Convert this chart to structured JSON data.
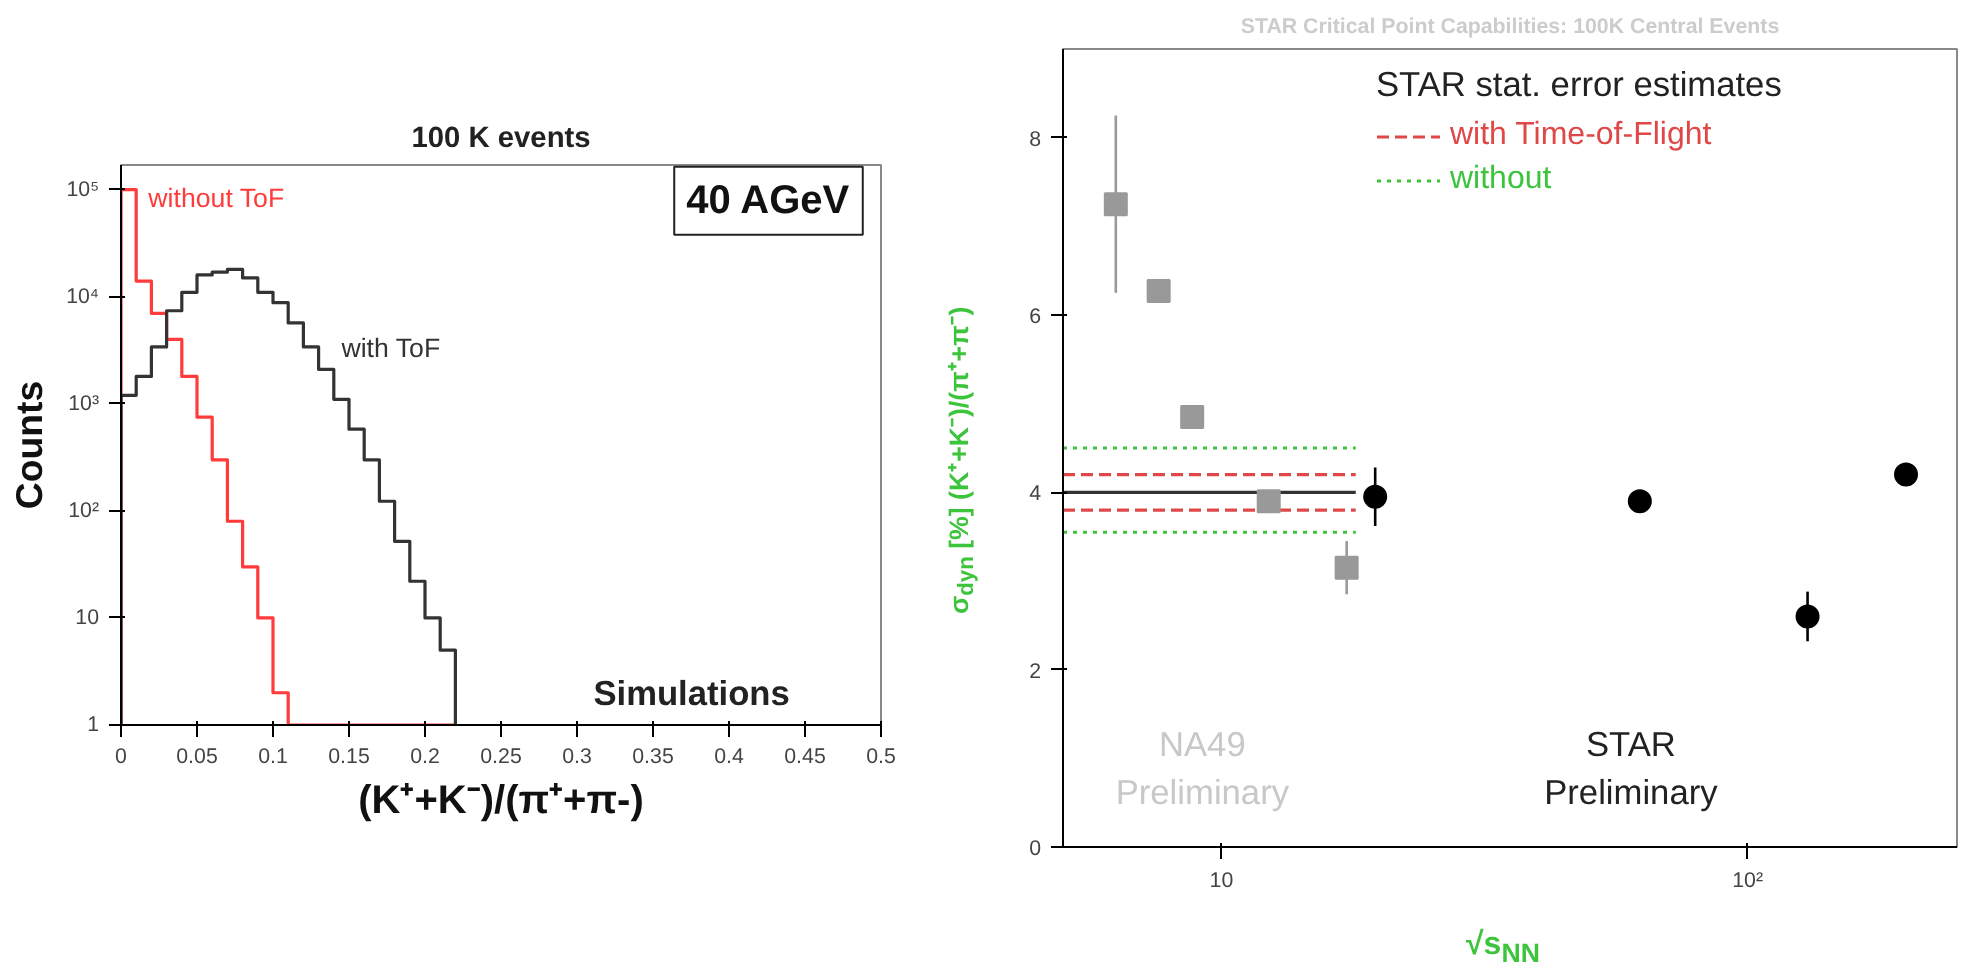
{
  "chart_data": [
    {
      "type": "histogram",
      "title": "100 K events",
      "xlabel": "(K⁺+K⁻)/(π⁺+π-)",
      "ylabel": "Counts",
      "log": "y",
      "xlim": [
        0,
        0.5
      ],
      "ylim": [
        1,
        170000
      ],
      "xticks": [
        0,
        0.05,
        0.1,
        0.15,
        0.2,
        0.25,
        0.3,
        0.35,
        0.4,
        0.45,
        0.5
      ],
      "yticks": [
        1,
        10,
        {
          "value": 100,
          "label": "10²"
        },
        {
          "value": 1000,
          "label": "10³"
        },
        {
          "value": 10000,
          "label": "10⁴"
        },
        {
          "value": 100000,
          "label": "10⁵"
        }
      ],
      "bins": [
        0,
        0.01,
        0.02,
        0.03,
        0.04,
        0.05,
        0.06,
        0.07,
        0.08,
        0.09,
        0.1,
        0.11,
        0.12,
        0.13,
        0.14,
        0.15,
        0.16,
        0.17,
        0.18,
        0.19,
        0.2,
        0.21,
        0.22
      ],
      "series": [
        {
          "name": "without ToF",
          "color": "#ff3b3b",
          "values": [
            100000,
            14000,
            7000,
            4000,
            1800,
            750,
            300,
            80,
            30,
            10,
            2,
            null,
            null,
            null,
            null,
            null,
            null,
            null,
            null,
            null,
            null,
            null
          ]
        },
        {
          "name": "with ToF",
          "color": "#333333",
          "values": [
            1200,
            1800,
            3400,
            7400,
            11000,
            16000,
            17000,
            18000,
            15000,
            11000,
            8800,
            5700,
            3400,
            2100,
            1100,
            580,
            300,
            123,
            52,
            22,
            10,
            5
          ]
        }
      ],
      "annotations": [
        "40 AGeV",
        "Simulations"
      ]
    },
    {
      "type": "scatter",
      "title": "STAR Critical Point Capabilities: 100K Central Events",
      "xlabel": "√s$_{NN}$",
      "ylabel": "σ$_{dyn}$ [%] (K⁺+K⁻)/(π⁺+π⁻)",
      "log": "x",
      "xlim": [
        5,
        250
      ],
      "ylim": [
        0,
        9
      ],
      "xticks": [
        10,
        {
          "value": 100,
          "label": "10²"
        }
      ],
      "yticks": [
        0,
        2,
        4,
        6,
        8
      ],
      "legend": "top right",
      "legend_title": "STAR stat. error estimates",
      "series": [
        {
          "color": "#333333",
          "type": "line",
          "line_style": "solid",
          "x": [
            5,
            18
          ],
          "values": [
            4,
            4
          ]
        },
        {
          "name": "with Time-of-Flight",
          "color": "#e04848",
          "type": "line",
          "line_style": "dashed",
          "x": [
            5,
            18
          ],
          "values": [
            4.2,
            4.2
          ]
        },
        {
          "color": "#e04848",
          "type": "line",
          "line_style": "dashed",
          "x": [
            5,
            18
          ],
          "values": [
            3.8,
            3.8
          ]
        },
        {
          "name": "without",
          "color": "#3cc43c",
          "type": "line",
          "line_style": "dotted",
          "x": [
            5,
            18
          ],
          "values": [
            4.5,
            4.5
          ]
        },
        {
          "color": "#3cc43c",
          "type": "line",
          "line_style": "dotted",
          "x": [
            5,
            18
          ],
          "values": [
            3.55,
            3.55
          ]
        },
        {
          "color": "#999999",
          "marker": "square",
          "x": [
            6.3,
            7.6,
            8.8,
            12.3,
            17.3
          ],
          "values": [
            7.25,
            6.27,
            4.85,
            3.9,
            3.15
          ],
          "errors": [
            1.0,
            null,
            null,
            null,
            0.3
          ]
        },
        {
          "color": "#000000",
          "marker": "circle",
          "x": [
            19.6,
            62.4,
            130,
            200
          ],
          "values": [
            3.95,
            3.9,
            2.6,
            4.2
          ],
          "errors": [
            0.33,
            0.1,
            0.28,
            0.1
          ]
        }
      ],
      "annotations": [
        "NA49\nPreliminary",
        "STAR\nPreliminary"
      ]
    }
  ]
}
